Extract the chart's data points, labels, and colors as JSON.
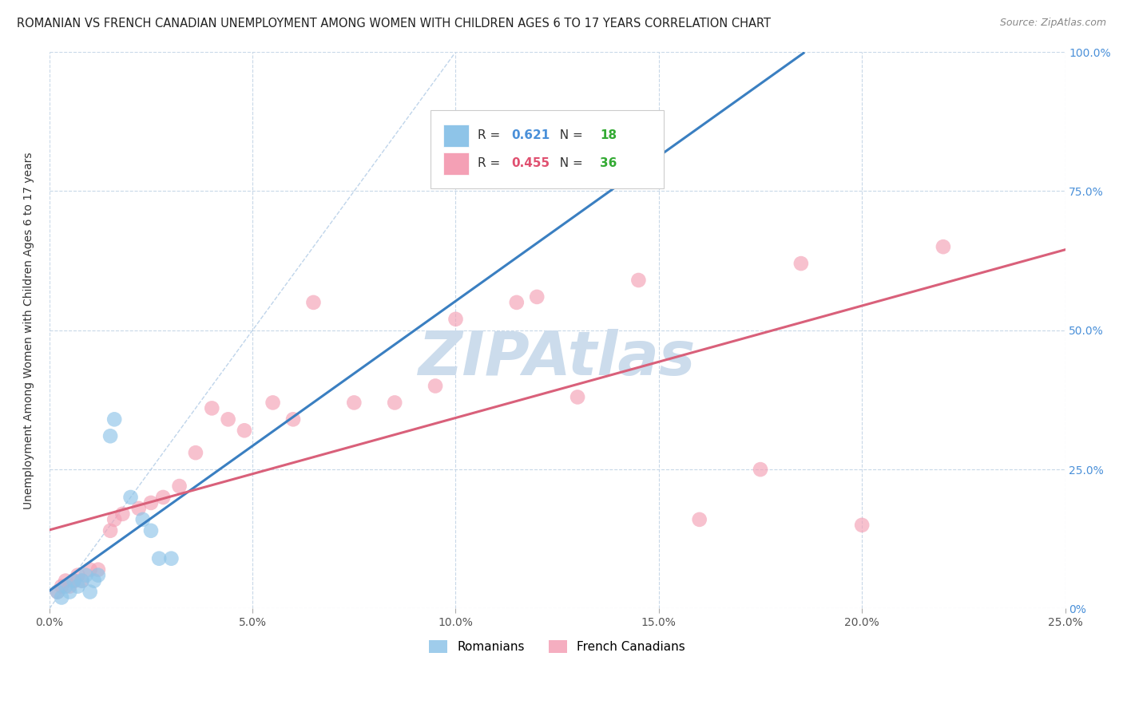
{
  "title": "ROMANIAN VS FRENCH CANADIAN UNEMPLOYMENT AMONG WOMEN WITH CHILDREN AGES 6 TO 17 YEARS CORRELATION CHART",
  "source": "Source: ZipAtlas.com",
  "ylabel": "Unemployment Among Women with Children Ages 6 to 17 years",
  "R_romanian": 0.621,
  "N_romanian": 18,
  "R_french": 0.455,
  "N_french": 36,
  "color_romanian": "#8ec4e8",
  "color_french": "#f4a0b5",
  "trendline_romanian": "#3a7fc1",
  "trendline_french": "#d9607a",
  "refline_color": "#b8d0e8",
  "background_color": "#ffffff",
  "grid_color": "#c8d8e8",
  "xlim": [
    0.0,
    0.25
  ],
  "ylim": [
    0.0,
    1.0
  ],
  "xticks": [
    0.0,
    0.05,
    0.1,
    0.15,
    0.2,
    0.25
  ],
  "yticks": [
    0.0,
    0.25,
    0.5,
    0.75,
    1.0
  ],
  "xtick_labels": [
    "0.0%",
    "5.0%",
    "10.0%",
    "15.0%",
    "20.0%",
    "25.0%"
  ],
  "ytick_labels_right": [
    "0%",
    "25.0%",
    "50.0%",
    "75.0%",
    "100.0%"
  ],
  "romanians_x": [
    0.002,
    0.003,
    0.004,
    0.005,
    0.006,
    0.007,
    0.008,
    0.009,
    0.01,
    0.011,
    0.012,
    0.015,
    0.016,
    0.02,
    0.023,
    0.025,
    0.027,
    0.03
  ],
  "romanians_y": [
    0.03,
    0.02,
    0.04,
    0.03,
    0.05,
    0.04,
    0.05,
    0.06,
    0.03,
    0.05,
    0.06,
    0.31,
    0.34,
    0.2,
    0.16,
    0.14,
    0.09,
    0.09
  ],
  "french_x": [
    0.002,
    0.003,
    0.004,
    0.005,
    0.006,
    0.007,
    0.008,
    0.01,
    0.012,
    0.015,
    0.016,
    0.018,
    0.022,
    0.025,
    0.028,
    0.032,
    0.036,
    0.04,
    0.044,
    0.048,
    0.055,
    0.06,
    0.065,
    0.075,
    0.085,
    0.095,
    0.1,
    0.115,
    0.12,
    0.13,
    0.145,
    0.16,
    0.175,
    0.185,
    0.2,
    0.22
  ],
  "french_y": [
    0.03,
    0.04,
    0.05,
    0.04,
    0.05,
    0.06,
    0.05,
    0.07,
    0.07,
    0.14,
    0.16,
    0.17,
    0.18,
    0.19,
    0.2,
    0.22,
    0.28,
    0.36,
    0.34,
    0.32,
    0.37,
    0.34,
    0.55,
    0.37,
    0.37,
    0.4,
    0.52,
    0.55,
    0.56,
    0.38,
    0.59,
    0.16,
    0.25,
    0.62,
    0.15,
    0.65
  ],
  "watermark": "ZIPAtlas",
  "watermark_color": "#ccdcec",
  "legend_entry1_color": "#4a90d9",
  "legend_entry2_color": "#e05070",
  "legend_N_color": "#33aa33",
  "figsize": [
    14.06,
    8.92
  ],
  "dpi": 100
}
